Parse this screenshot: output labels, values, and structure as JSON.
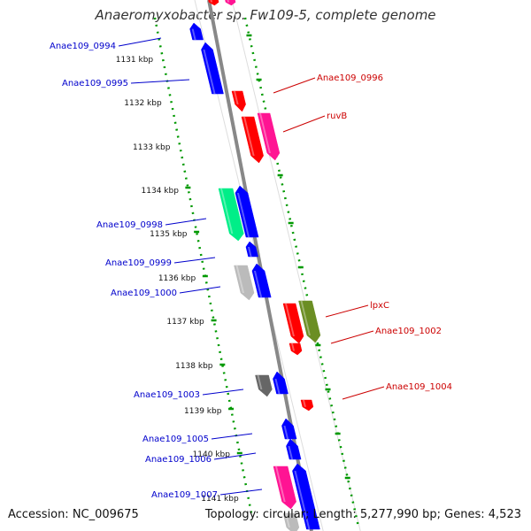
{
  "title": "Anaeromyxobacter sp. Fw109-5, complete genome",
  "accession": "Accession: NC_009675",
  "summary": "Topology: circular; Length: 5,277,990 bp; Genes: 4,523",
  "colors": {
    "forward_label": "#0000cc",
    "reverse_label": "#cc0000",
    "backbone": "#888888",
    "tick_ring": "#009900"
  },
  "positions": [
    {
      "label": "1131 kbp"
    },
    {
      "label": "1132 kbp"
    },
    {
      "label": "1133 kbp"
    },
    {
      "label": "1134 kbp"
    },
    {
      "label": "1135 kbp"
    },
    {
      "label": "1136 kbp"
    },
    {
      "label": "1137 kbp"
    },
    {
      "label": "1138 kbp"
    },
    {
      "label": "1139 kbp"
    },
    {
      "label": "1140 kbp"
    },
    {
      "label": "1141 kbp"
    }
  ],
  "gene_labels": [
    {
      "text": "Anae109_0994",
      "strand": "forward"
    },
    {
      "text": "Anae109_0995",
      "strand": "forward"
    },
    {
      "text": "Anae109_0996",
      "strand": "reverse"
    },
    {
      "text": "ruvB",
      "strand": "reverse"
    },
    {
      "text": "Anae109_0998",
      "strand": "forward"
    },
    {
      "text": "Anae109_0999",
      "strand": "forward"
    },
    {
      "text": "Anae109_1000",
      "strand": "forward"
    },
    {
      "text": "lpxC",
      "strand": "reverse"
    },
    {
      "text": "Anae109_1002",
      "strand": "reverse"
    },
    {
      "text": "Anae109_1003",
      "strand": "forward"
    },
    {
      "text": "Anae109_1004",
      "strand": "reverse"
    },
    {
      "text": "Anae109_1005",
      "strand": "forward"
    },
    {
      "text": "Anae109_1006",
      "strand": "forward"
    },
    {
      "text": "Anae109_1007",
      "strand": "forward"
    }
  ]
}
